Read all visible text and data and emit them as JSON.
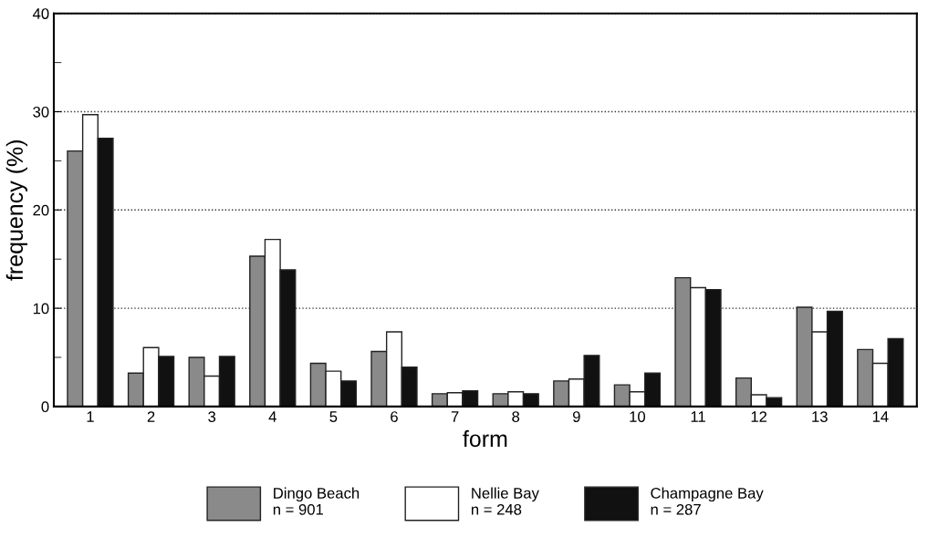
{
  "chart_data": {
    "type": "bar",
    "xlabel": "form",
    "ylabel": "frequency (%)",
    "categories": [
      "1",
      "2",
      "3",
      "4",
      "5",
      "6",
      "7",
      "8",
      "9",
      "10",
      "11",
      "12",
      "13",
      "14"
    ],
    "series": [
      {
        "name": "Dingo Beach\nn = 901",
        "color": "#8a8a8a",
        "values": [
          26.0,
          3.4,
          5.0,
          15.3,
          4.4,
          5.6,
          1.3,
          1.3,
          2.6,
          2.2,
          13.1,
          2.9,
          10.1,
          5.8
        ]
      },
      {
        "name": "Nellie Bay\nn = 248",
        "color": "#ffffff",
        "values": [
          29.7,
          6.0,
          3.1,
          17.0,
          3.6,
          7.6,
          1.4,
          1.5,
          2.8,
          1.5,
          12.1,
          1.2,
          7.6,
          4.4
        ]
      },
      {
        "name": "Champagne Bay\nn = 287",
        "color": "#111111",
        "values": [
          27.3,
          5.1,
          5.1,
          13.9,
          2.6,
          4.0,
          1.6,
          1.3,
          5.2,
          3.4,
          11.9,
          0.9,
          9.7,
          6.9
        ]
      }
    ],
    "ylim": [
      0,
      40
    ],
    "yticks": [
      0,
      {
        "value": 5,
        "label": null
      },
      10,
      {
        "value": 15,
        "label": null
      },
      20,
      {
        "value": 25,
        "label": null
      },
      30,
      {
        "value": 35,
        "label": null
      },
      40
    ],
    "grid": "y",
    "line_style": "dotted",
    "legend": "bottom"
  }
}
